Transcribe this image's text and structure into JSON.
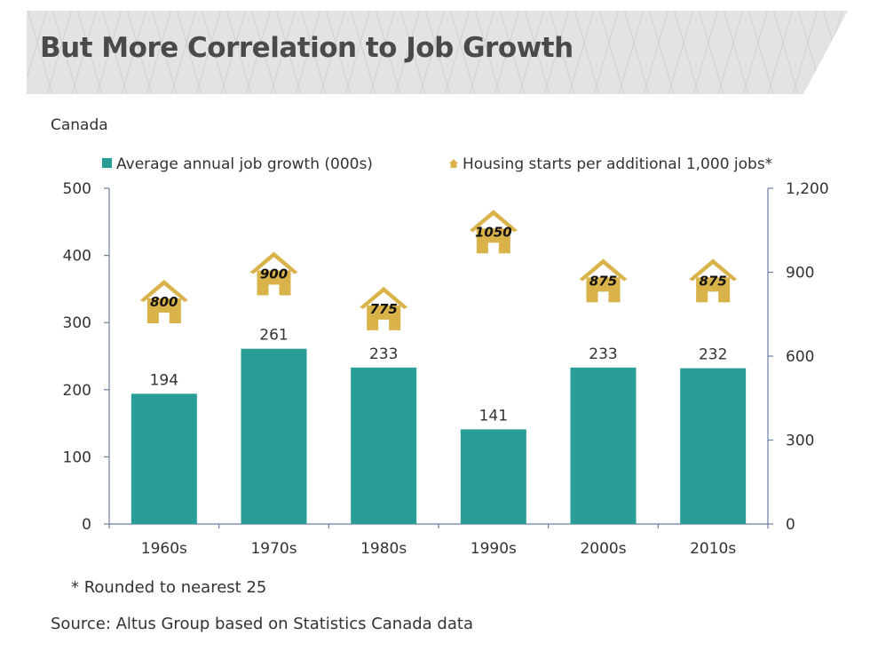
{
  "header": {
    "title": "But More Correlation to Job Growth",
    "region": "Canada"
  },
  "colors": {
    "bar": "#2a9d96",
    "house": "#d9b24a",
    "axis": "#6b7ea3",
    "banner_bg": "#e3e3e5"
  },
  "chart_data": {
    "type": "bar",
    "categories": [
      "1960s",
      "1970s",
      "1980s",
      "1990s",
      "2000s",
      "2010s"
    ],
    "series": [
      {
        "name": "Average annual job growth (000s)",
        "axis": "left",
        "mark": "bar",
        "values": [
          194,
          261,
          233,
          141,
          233,
          232
        ]
      },
      {
        "name": "Housing starts per additional 1,000 jobs*",
        "axis": "right",
        "mark": "house-icon",
        "values": [
          800,
          900,
          775,
          1050,
          875,
          875
        ]
      }
    ],
    "y_left": {
      "range": [
        0,
        500
      ],
      "ticks": [
        "0",
        "100",
        "200",
        "300",
        "400",
        "500"
      ]
    },
    "y_right": {
      "range": [
        0,
        1200
      ],
      "ticks": [
        "0",
        "300",
        "600",
        "900",
        "1,200"
      ]
    },
    "bar_labels": [
      "194",
      "261",
      "233",
      "141",
      "233",
      "232"
    ],
    "house_labels": [
      "800",
      "900",
      "775",
      "1050",
      "875",
      "875"
    ],
    "legend": {
      "bar": "Average annual job growth (000s)",
      "house": "Housing starts per additional 1,000 jobs*"
    }
  },
  "notes": {
    "footnote": "* Rounded to nearest 25",
    "source": "Source: Altus Group based on Statistics Canada data"
  }
}
